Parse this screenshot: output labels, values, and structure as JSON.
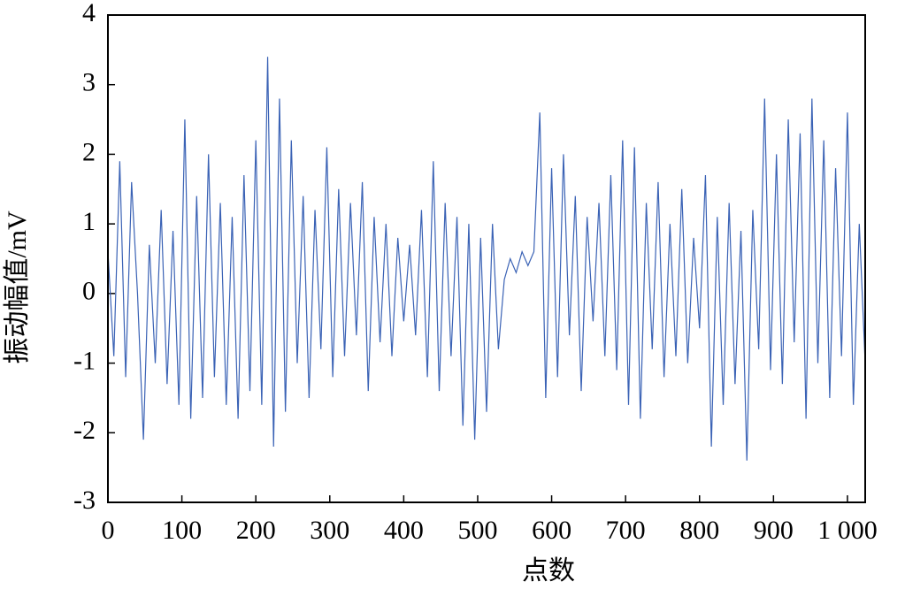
{
  "chart_data": {
    "type": "line",
    "xlabel": "点数",
    "ylabel": "振动幅值/mV",
    "color": "#3a62b5",
    "xlim": [
      0,
      1024
    ],
    "ylim": [
      -3,
      4
    ],
    "xticks": [
      0,
      100,
      200,
      300,
      400,
      500,
      600,
      700,
      800,
      900,
      {
        "value": 1000,
        "label": "1 000"
      }
    ],
    "yticks": [
      -3,
      -2,
      -1,
      0,
      1,
      2,
      3,
      4
    ],
    "x": [
      0,
      8,
      16,
      24,
      32,
      40,
      48,
      56,
      64,
      72,
      80,
      88,
      96,
      104,
      112,
      120,
      128,
      136,
      144,
      152,
      160,
      168,
      176,
      184,
      192,
      200,
      208,
      216,
      224,
      232,
      240,
      248,
      256,
      264,
      272,
      280,
      288,
      296,
      304,
      312,
      320,
      328,
      336,
      344,
      352,
      360,
      368,
      376,
      384,
      392,
      400,
      408,
      416,
      424,
      432,
      440,
      448,
      456,
      464,
      472,
      480,
      488,
      496,
      504,
      512,
      520,
      528,
      536,
      544,
      552,
      560,
      568,
      576,
      584,
      592,
      600,
      608,
      616,
      624,
      632,
      640,
      648,
      656,
      664,
      672,
      680,
      688,
      696,
      704,
      712,
      720,
      728,
      736,
      744,
      752,
      760,
      768,
      776,
      784,
      792,
      800,
      808,
      816,
      824,
      832,
      840,
      848,
      856,
      864,
      872,
      880,
      888,
      896,
      904,
      912,
      920,
      928,
      936,
      944,
      952,
      960,
      968,
      976,
      984,
      992,
      1000,
      1008,
      1016,
      1024
    ],
    "values": [
      0.6,
      -0.9,
      1.9,
      -1.2,
      1.6,
      0.0,
      -2.1,
      0.7,
      -1.0,
      1.2,
      -1.3,
      0.9,
      -1.6,
      2.5,
      -1.8,
      1.4,
      -1.5,
      2.0,
      -1.2,
      1.3,
      -1.6,
      1.1,
      -1.8,
      1.7,
      -1.4,
      2.2,
      -1.6,
      3.4,
      -2.2,
      2.8,
      -1.7,
      2.2,
      -1.0,
      1.4,
      -1.5,
      1.2,
      -0.8,
      2.1,
      -1.2,
      1.5,
      -0.9,
      1.3,
      -0.6,
      1.6,
      -1.4,
      1.1,
      -0.7,
      1.0,
      -0.9,
      0.8,
      -0.4,
      0.7,
      -0.6,
      1.2,
      -1.2,
      1.9,
      -1.4,
      1.3,
      -0.9,
      1.1,
      -1.9,
      1.0,
      -2.1,
      0.8,
      -1.7,
      1.0,
      -0.8,
      0.2,
      0.5,
      0.3,
      0.6,
      0.4,
      0.6,
      2.6,
      -1.5,
      1.8,
      -1.2,
      2.0,
      -0.6,
      1.4,
      -1.4,
      1.1,
      -0.4,
      1.3,
      -0.9,
      1.7,
      -1.1,
      2.2,
      -1.6,
      2.1,
      -1.8,
      1.3,
      -0.8,
      1.6,
      -1.2,
      1.0,
      -0.9,
      1.5,
      -1.0,
      0.8,
      -0.5,
      1.7,
      -2.2,
      1.1,
      -1.6,
      1.3,
      -1.3,
      0.9,
      -2.4,
      1.2,
      -0.8,
      2.8,
      -1.1,
      2.0,
      -1.3,
      2.5,
      -0.7,
      2.3,
      -1.8,
      2.8,
      -1.0,
      2.2,
      -1.5,
      1.8,
      -0.9,
      2.6,
      -1.6,
      1.0,
      -1.0
    ]
  }
}
